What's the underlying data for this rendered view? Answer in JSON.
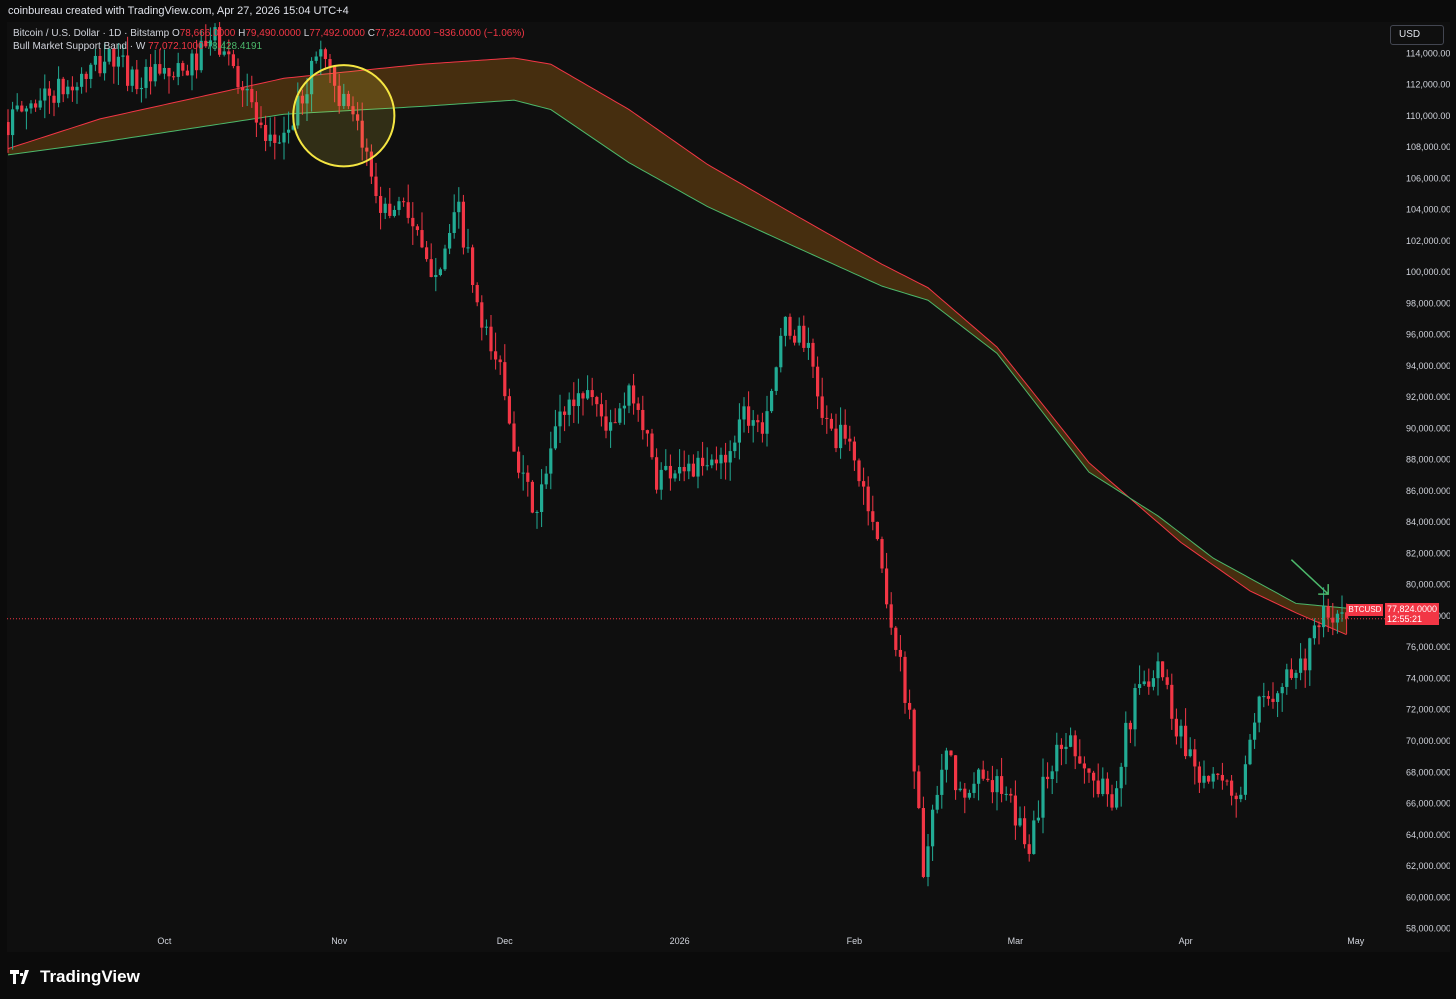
{
  "header": {
    "attribution": "coinbureau created with TradingView.com, Apr 27, 2026 15:04 UTC+4"
  },
  "legend": {
    "symbol": "Bitcoin / U.S. Dollar · 1D · Bitstamp",
    "o_label": "O",
    "o_value": "78,666.0000",
    "h_label": "H",
    "h_value": "79,490.0000",
    "l_label": "L",
    "l_value": "77,492.0000",
    "c_label": "C",
    "c_value": "77,824.0000",
    "change": "−836.0000 (−1.06%)",
    "indicator": "Bull Market Support Band · W",
    "ind_value_1": "77,072.1000",
    "ind_value_2": "78,428.4191"
  },
  "toolbar": {
    "currency": "USD"
  },
  "price_tag": {
    "symbol": "BTCUSD",
    "price": "77,824.0000",
    "countdown": "12:55:21"
  },
  "footer": {
    "brand": "TradingView"
  },
  "colors": {
    "up": "#22ab94",
    "down": "#f23645",
    "band_upper": "#f23645",
    "band_lower": "#4cb86b",
    "band_fill": "#5a3a10",
    "highlight_circle": "#f5e642",
    "arrow": "#4cb86b"
  },
  "chart_data": {
    "type": "candlestick",
    "title": "Bitcoin / U.S. Dollar · 1D · Bitstamp",
    "xlabel": "",
    "ylabel": "USD",
    "ylim": [
      56500,
      116000
    ],
    "y_ticks": [
      "114,000.0000",
      "112,000.0000",
      "110,000.0000",
      "108,000.0000",
      "106,000.0000",
      "104,000.0000",
      "102,000.0000",
      "100,000.0000",
      "98,000.0000",
      "96,000.0000",
      "94,000.0000",
      "92,000.0000",
      "90,000.0000",
      "88,000.0000",
      "86,000.0000",
      "84,000.0000",
      "82,000.0000",
      "80,000.0000",
      "78,000.0000",
      "76,000.0000",
      "74,000.0000",
      "72,000.0000",
      "70,000.0000",
      "68,000.0000",
      "66,000.0000",
      "64,000.0000",
      "62,000.0000",
      "60,000.0000",
      "58,000.0000"
    ],
    "x_ticks": [
      "Oct",
      "Nov",
      "Dec",
      "2026",
      "Feb",
      "Mar",
      "Apr",
      "May"
    ],
    "current_price": 77824,
    "band_upper": [
      [
        0,
        107900
      ],
      [
        20,
        109800
      ],
      [
        60,
        112400
      ],
      [
        90,
        113300
      ],
      [
        110,
        113700
      ],
      [
        118,
        113300
      ],
      [
        135,
        110400
      ],
      [
        152,
        106900
      ],
      [
        172,
        103500
      ],
      [
        190,
        100500
      ],
      [
        200,
        99000
      ],
      [
        215,
        95200
      ],
      [
        235,
        87800
      ],
      [
        255,
        82700
      ],
      [
        270,
        79600
      ],
      [
        280,
        78200
      ],
      [
        291,
        76800
      ]
    ],
    "band_lower": [
      [
        0,
        107500
      ],
      [
        20,
        108300
      ],
      [
        60,
        110100
      ],
      [
        90,
        110600
      ],
      [
        110,
        111000
      ],
      [
        118,
        110400
      ],
      [
        135,
        107000
      ],
      [
        152,
        104200
      ],
      [
        172,
        101500
      ],
      [
        190,
        99100
      ],
      [
        200,
        98200
      ],
      [
        215,
        94800
      ],
      [
        235,
        87200
      ],
      [
        250,
        84400
      ],
      [
        262,
        81700
      ],
      [
        280,
        78800
      ],
      [
        291,
        78500
      ]
    ],
    "candles_seeds": [
      [
        0,
        109600
      ],
      [
        7,
        111200
      ],
      [
        14,
        111800
      ],
      [
        22,
        113800
      ],
      [
        28,
        112300
      ],
      [
        38,
        112600
      ],
      [
        45,
        115000
      ],
      [
        52,
        111600
      ],
      [
        56,
        107700
      ],
      [
        62,
        109600
      ],
      [
        68,
        114600
      ],
      [
        72,
        111300
      ],
      [
        77,
        108200
      ],
      [
        82,
        103700
      ],
      [
        86,
        104800
      ],
      [
        91,
        100200
      ],
      [
        94,
        100800
      ],
      [
        98,
        103800
      ],
      [
        103,
        96200
      ],
      [
        107,
        93900
      ],
      [
        112,
        86400
      ],
      [
        115,
        84500
      ],
      [
        120,
        91000
      ],
      [
        126,
        92600
      ],
      [
        131,
        89800
      ],
      [
        136,
        92400
      ],
      [
        141,
        86900
      ],
      [
        146,
        87800
      ],
      [
        151,
        87200
      ],
      [
        156,
        88200
      ],
      [
        160,
        91200
      ],
      [
        164,
        90400
      ],
      [
        169,
        96400
      ],
      [
        173,
        95800
      ],
      [
        178,
        90000
      ],
      [
        183,
        88900
      ],
      [
        186,
        86000
      ],
      [
        188,
        84300
      ],
      [
        193,
        76000
      ],
      [
        196,
        71900
      ],
      [
        199,
        61800
      ],
      [
        204,
        69100
      ],
      [
        208,
        65800
      ],
      [
        212,
        68300
      ],
      [
        217,
        66200
      ],
      [
        222,
        63400
      ],
      [
        226,
        68200
      ],
      [
        231,
        70400
      ],
      [
        236,
        67200
      ],
      [
        240,
        66600
      ],
      [
        245,
        72700
      ],
      [
        250,
        75300
      ],
      [
        254,
        71000
      ],
      [
        259,
        68100
      ],
      [
        263,
        67100
      ],
      [
        268,
        66600
      ],
      [
        272,
        72000
      ],
      [
        277,
        74200
      ],
      [
        281,
        74800
      ],
      [
        286,
        77800
      ],
      [
        291,
        77800
      ]
    ],
    "highlight": {
      "type": "circle",
      "center": [
        73,
        110000
      ],
      "radius_days": 11
    },
    "annotation": {
      "type": "arrow",
      "from": [
        279,
        81600
      ],
      "to": [
        287,
        79400
      ]
    },
    "legend": [
      "Bitcoin / U.S. Dollar",
      "Bull Market Support Band"
    ],
    "grid": false,
    "legend_position": "top-left"
  }
}
